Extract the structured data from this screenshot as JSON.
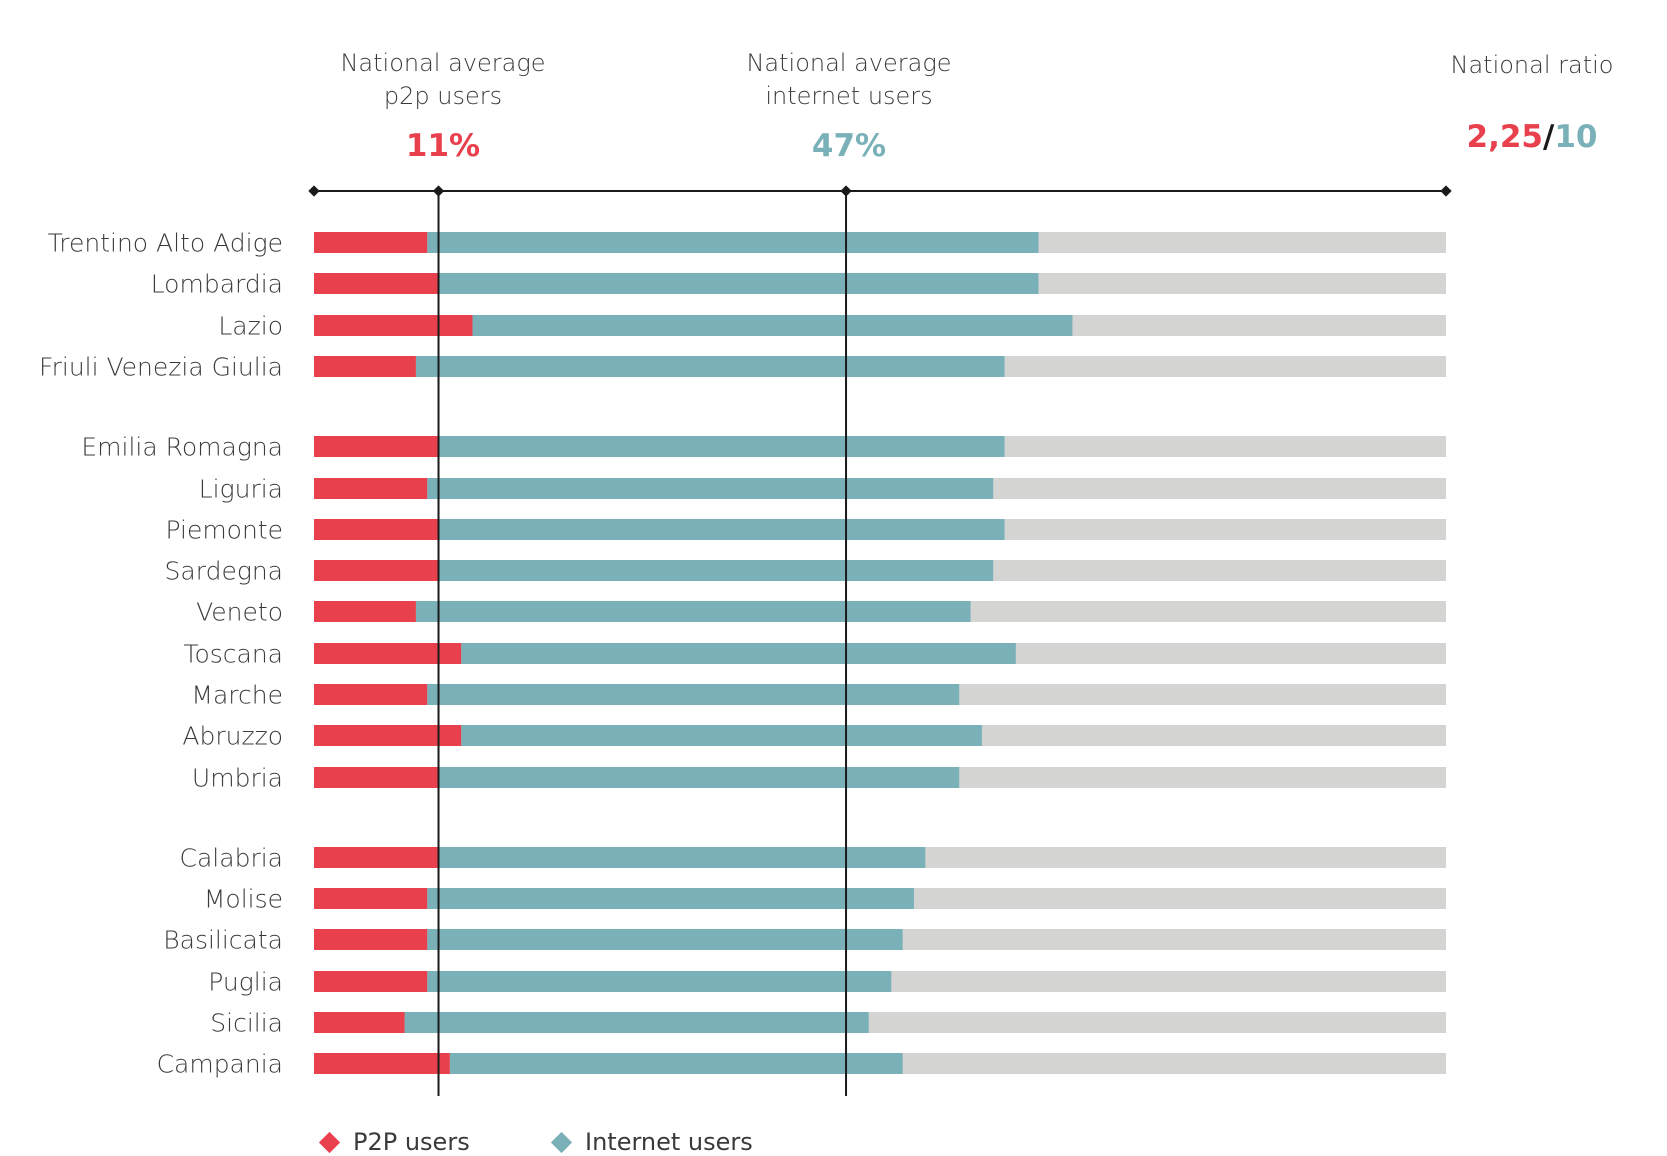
{
  "header": {
    "p2p_line1": "National average",
    "p2p_line2": "p2p users",
    "p2p_value": "11%",
    "internet_line1": "National average",
    "internet_line2": "internet users",
    "internet_value": "47%",
    "ratio_label": "National ratio",
    "ratio_p2p": "2,25",
    "ratio_sep": "/",
    "ratio_total": "10"
  },
  "legend": {
    "p2p_label": "P2P users",
    "internet_label": "Internet users"
  },
  "colors": {
    "p2p": "#e8404c",
    "internet": "#7ab1b8",
    "remainder": "#d4d4d2",
    "axis": "#1a1a1a",
    "text": "#3a3a3a"
  },
  "chart_data": {
    "type": "bar",
    "orientation": "horizontal",
    "stacked": true,
    "xlim": [
      0,
      100
    ],
    "reference_lines": [
      {
        "label": "National average p2p users",
        "value": 11
      },
      {
        "label": "National average internet users",
        "value": 47
      }
    ],
    "groups": [
      [
        {
          "region": "Trentino Alto Adige",
          "p2p": 10,
          "internet": 54
        },
        {
          "region": "Lombardia",
          "p2p": 11,
          "internet": 53
        },
        {
          "region": "Lazio",
          "p2p": 14,
          "internet": 53
        },
        {
          "region": "Friuli Venezia Giulia",
          "p2p": 9,
          "internet": 52
        }
      ],
      [
        {
          "region": "Emilia Romagna",
          "p2p": 11,
          "internet": 50
        },
        {
          "region": "Liguria",
          "p2p": 10,
          "internet": 50
        },
        {
          "region": "Piemonte",
          "p2p": 11,
          "internet": 50
        },
        {
          "region": "Sardegna",
          "p2p": 11,
          "internet": 49
        },
        {
          "region": "Veneto",
          "p2p": 9,
          "internet": 49
        },
        {
          "region": "Toscana",
          "p2p": 13,
          "internet": 49
        },
        {
          "region": "Marche",
          "p2p": 10,
          "internet": 47
        },
        {
          "region": "Abruzzo",
          "p2p": 13,
          "internet": 46
        },
        {
          "region": "Umbria",
          "p2p": 11,
          "internet": 46
        }
      ],
      [
        {
          "region": "Calabria",
          "p2p": 11,
          "internet": 43
        },
        {
          "region": "Molise",
          "p2p": 10,
          "internet": 43
        },
        {
          "region": "Basilicata",
          "p2p": 10,
          "internet": 42
        },
        {
          "region": "Puglia",
          "p2p": 10,
          "internet": 41
        },
        {
          "region": "Sicilia",
          "p2p": 8,
          "internet": 41
        },
        {
          "region": "Campania",
          "p2p": 12,
          "internet": 40
        }
      ]
    ]
  }
}
